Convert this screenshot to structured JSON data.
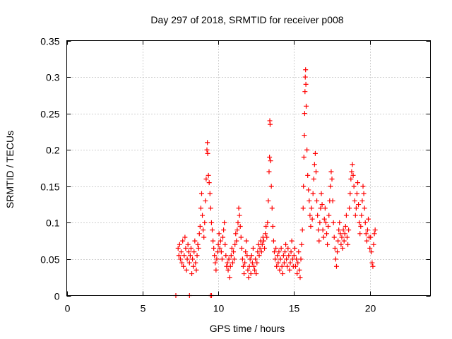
{
  "chart_data": {
    "type": "scatter",
    "title": "Day 297 of 2018, SRMTID for receiver p008",
    "xlabel": "GPS time / hours",
    "ylabel": "SRMTID / TECUs",
    "xlim": [
      0,
      24
    ],
    "ylim": [
      0,
      0.35
    ],
    "x_ticks": [
      0,
      5,
      10,
      15,
      20
    ],
    "y_ticks": [
      0,
      0.05,
      0.1,
      0.15,
      0.2,
      0.25,
      0.3,
      0.35
    ],
    "x_tick_labels": [
      "0",
      "5",
      "10",
      "15",
      "20"
    ],
    "y_tick_labels": [
      "0",
      "0.05",
      "0.1",
      "0.15",
      "0.2",
      "0.25",
      "0.3",
      "0.35"
    ],
    "grid": true,
    "marker": "+",
    "color": "#ff0000",
    "series": [
      {
        "name": "SRMTID",
        "points": [
          [
            7.2,
            0.0
          ],
          [
            8.1,
            0.0
          ],
          [
            9.5,
            0.0
          ],
          [
            9.55,
            0.0
          ],
          [
            7.35,
            0.065
          ],
          [
            7.4,
            0.055
          ],
          [
            7.45,
            0.07
          ],
          [
            7.5,
            0.05
          ],
          [
            7.55,
            0.06
          ],
          [
            7.6,
            0.045
          ],
          [
            7.65,
            0.075
          ],
          [
            7.7,
            0.04
          ],
          [
            7.75,
            0.055
          ],
          [
            7.8,
            0.08
          ],
          [
            7.85,
            0.065
          ],
          [
            7.9,
            0.035
          ],
          [
            7.95,
            0.05
          ],
          [
            8.0,
            0.07
          ],
          [
            8.05,
            0.06
          ],
          [
            8.1,
            0.045
          ],
          [
            8.15,
            0.055
          ],
          [
            8.2,
            0.065
          ],
          [
            8.25,
            0.03
          ],
          [
            8.3,
            0.05
          ],
          [
            8.35,
            0.04
          ],
          [
            8.4,
            0.06
          ],
          [
            8.45,
            0.075
          ],
          [
            8.5,
            0.045
          ],
          [
            8.55,
            0.035
          ],
          [
            8.6,
            0.055
          ],
          [
            8.65,
            0.07
          ],
          [
            8.7,
            0.065
          ],
          [
            8.75,
            0.085
          ],
          [
            8.8,
            0.095
          ],
          [
            8.85,
            0.12
          ],
          [
            8.9,
            0.14
          ],
          [
            8.95,
            0.11
          ],
          [
            9.0,
            0.09
          ],
          [
            9.05,
            0.08
          ],
          [
            9.1,
            0.1
          ],
          [
            9.15,
            0.13
          ],
          [
            9.2,
            0.16
          ],
          [
            9.25,
            0.2
          ],
          [
            9.28,
            0.21
          ],
          [
            9.3,
            0.195
          ],
          [
            9.35,
            0.165
          ],
          [
            9.4,
            0.155
          ],
          [
            9.45,
            0.14
          ],
          [
            9.5,
            0.12
          ],
          [
            9.55,
            0.1
          ],
          [
            9.6,
            0.09
          ],
          [
            9.65,
            0.075
          ],
          [
            9.7,
            0.065
          ],
          [
            9.75,
            0.055
          ],
          [
            9.8,
            0.045
          ],
          [
            9.85,
            0.035
          ],
          [
            9.9,
            0.05
          ],
          [
            9.95,
            0.06
          ],
          [
            10.0,
            0.07
          ],
          [
            10.05,
            0.085
          ],
          [
            10.1,
            0.065
          ],
          [
            10.15,
            0.075
          ],
          [
            10.2,
            0.06
          ],
          [
            10.25,
            0.05
          ],
          [
            10.3,
            0.08
          ],
          [
            10.35,
            0.09
          ],
          [
            10.4,
            0.1
          ],
          [
            10.45,
            0.07
          ],
          [
            10.5,
            0.055
          ],
          [
            10.55,
            0.04
          ],
          [
            10.6,
            0.045
          ],
          [
            10.65,
            0.035
          ],
          [
            10.7,
            0.05
          ],
          [
            10.75,
            0.025
          ],
          [
            10.8,
            0.04
          ],
          [
            10.85,
            0.055
          ],
          [
            10.9,
            0.065
          ],
          [
            10.95,
            0.045
          ],
          [
            11.0,
            0.06
          ],
          [
            11.05,
            0.05
          ],
          [
            11.1,
            0.07
          ],
          [
            11.15,
            0.085
          ],
          [
            11.2,
            0.075
          ],
          [
            11.25,
            0.09
          ],
          [
            11.3,
            0.1
          ],
          [
            11.35,
            0.12
          ],
          [
            11.4,
            0.11
          ],
          [
            11.45,
            0.095
          ],
          [
            11.5,
            0.08
          ],
          [
            11.55,
            0.065
          ],
          [
            11.6,
            0.05
          ],
          [
            11.65,
            0.04
          ],
          [
            11.7,
            0.03
          ],
          [
            11.75,
            0.045
          ],
          [
            11.8,
            0.06
          ],
          [
            11.85,
            0.075
          ],
          [
            11.9,
            0.055
          ],
          [
            11.95,
            0.035
          ],
          [
            12.0,
            0.025
          ],
          [
            12.05,
            0.04
          ],
          [
            12.1,
            0.05
          ],
          [
            12.15,
            0.03
          ],
          [
            12.2,
            0.055
          ],
          [
            12.25,
            0.045
          ],
          [
            12.3,
            0.065
          ],
          [
            12.35,
            0.04
          ],
          [
            12.4,
            0.035
          ],
          [
            12.45,
            0.05
          ],
          [
            12.5,
            0.03
          ],
          [
            12.55,
            0.045
          ],
          [
            12.6,
            0.06
          ],
          [
            12.65,
            0.07
          ],
          [
            12.7,
            0.055
          ],
          [
            12.75,
            0.065
          ],
          [
            12.8,
            0.075
          ],
          [
            12.85,
            0.06
          ],
          [
            12.9,
            0.07
          ],
          [
            12.95,
            0.08
          ],
          [
            13.0,
            0.075
          ],
          [
            13.05,
            0.065
          ],
          [
            13.1,
            0.085
          ],
          [
            13.15,
            0.095
          ],
          [
            13.2,
            0.08
          ],
          [
            13.25,
            0.1
          ],
          [
            13.3,
            0.13
          ],
          [
            13.35,
            0.17
          ],
          [
            13.38,
            0.19
          ],
          [
            13.4,
            0.24
          ],
          [
            13.42,
            0.235
          ],
          [
            13.45,
            0.185
          ],
          [
            13.5,
            0.15
          ],
          [
            13.55,
            0.12
          ],
          [
            13.6,
            0.095
          ],
          [
            13.65,
            0.075
          ],
          [
            13.7,
            0.06
          ],
          [
            13.75,
            0.05
          ],
          [
            13.8,
            0.065
          ],
          [
            13.85,
            0.04
          ],
          [
            13.9,
            0.055
          ],
          [
            13.95,
            0.045
          ],
          [
            14.0,
            0.06
          ],
          [
            14.05,
            0.035
          ],
          [
            14.1,
            0.05
          ],
          [
            14.15,
            0.065
          ],
          [
            14.2,
            0.04
          ],
          [
            14.25,
            0.03
          ],
          [
            14.3,
            0.055
          ],
          [
            14.35,
            0.045
          ],
          [
            14.4,
            0.06
          ],
          [
            14.45,
            0.07
          ],
          [
            14.5,
            0.05
          ],
          [
            14.55,
            0.04
          ],
          [
            14.6,
            0.065
          ],
          [
            14.65,
            0.055
          ],
          [
            14.7,
            0.035
          ],
          [
            14.75,
            0.045
          ],
          [
            14.8,
            0.06
          ],
          [
            14.85,
            0.075
          ],
          [
            14.9,
            0.05
          ],
          [
            14.95,
            0.04
          ],
          [
            15.0,
            0.055
          ],
          [
            15.05,
            0.065
          ],
          [
            15.1,
            0.04
          ],
          [
            15.15,
            0.05
          ],
          [
            15.2,
            0.03
          ],
          [
            15.25,
            0.045
          ],
          [
            15.3,
            0.06
          ],
          [
            15.35,
            0.035
          ],
          [
            15.4,
            0.025
          ],
          [
            15.45,
            0.05
          ],
          [
            15.5,
            0.07
          ],
          [
            15.55,
            0.09
          ],
          [
            15.6,
            0.12
          ],
          [
            15.62,
            0.15
          ],
          [
            15.65,
            0.19
          ],
          [
            15.68,
            0.22
          ],
          [
            15.7,
            0.25
          ],
          [
            15.72,
            0.28
          ],
          [
            15.74,
            0.3
          ],
          [
            15.76,
            0.31
          ],
          [
            15.78,
            0.29
          ],
          [
            15.8,
            0.26
          ],
          [
            15.85,
            0.2
          ],
          [
            15.9,
            0.165
          ],
          [
            15.95,
            0.145
          ],
          [
            16.0,
            0.13
          ],
          [
            16.05,
            0.11
          ],
          [
            16.1,
            0.095
          ],
          [
            16.15,
            0.12
          ],
          [
            16.2,
            0.105
          ],
          [
            16.25,
            0.14
          ],
          [
            16.3,
            0.16
          ],
          [
            16.35,
            0.18
          ],
          [
            16.4,
            0.195
          ],
          [
            16.45,
            0.17
          ],
          [
            16.5,
            0.13
          ],
          [
            16.55,
            0.11
          ],
          [
            16.6,
            0.09
          ],
          [
            16.65,
            0.075
          ],
          [
            16.7,
            0.1
          ],
          [
            16.75,
            0.12
          ],
          [
            16.8,
            0.14
          ],
          [
            16.85,
            0.125
          ],
          [
            16.9,
            0.09
          ],
          [
            16.95,
            0.08
          ],
          [
            17.0,
            0.105
          ],
          [
            17.05,
            0.12
          ],
          [
            17.1,
            0.1
          ],
          [
            17.15,
            0.085
          ],
          [
            17.2,
            0.07
          ],
          [
            17.25,
            0.095
          ],
          [
            17.3,
            0.11
          ],
          [
            17.35,
            0.13
          ],
          [
            17.4,
            0.15
          ],
          [
            17.45,
            0.17
          ],
          [
            17.5,
            0.16
          ],
          [
            17.55,
            0.13
          ],
          [
            17.6,
            0.1
          ],
          [
            17.65,
            0.08
          ],
          [
            17.7,
            0.065
          ],
          [
            17.75,
            0.05
          ],
          [
            17.8,
            0.04
          ],
          [
            17.85,
            0.06
          ],
          [
            17.9,
            0.075
          ],
          [
            17.95,
            0.09
          ],
          [
            18.0,
            0.1
          ],
          [
            18.05,
            0.085
          ],
          [
            18.1,
            0.07
          ],
          [
            18.15,
            0.08
          ],
          [
            18.2,
            0.065
          ],
          [
            18.25,
            0.09
          ],
          [
            18.3,
            0.075
          ],
          [
            18.35,
            0.085
          ],
          [
            18.4,
            0.095
          ],
          [
            18.45,
            0.11
          ],
          [
            18.5,
            0.08
          ],
          [
            18.55,
            0.07
          ],
          [
            18.6,
            0.09
          ],
          [
            18.65,
            0.12
          ],
          [
            18.7,
            0.14
          ],
          [
            18.75,
            0.16
          ],
          [
            18.8,
            0.17
          ],
          [
            18.85,
            0.18
          ],
          [
            18.9,
            0.165
          ],
          [
            18.95,
            0.15
          ],
          [
            19.0,
            0.13
          ],
          [
            19.05,
            0.11
          ],
          [
            19.1,
            0.12
          ],
          [
            19.15,
            0.14
          ],
          [
            19.2,
            0.155
          ],
          [
            19.25,
            0.125
          ],
          [
            19.3,
            0.1
          ],
          [
            19.35,
            0.085
          ],
          [
            19.4,
            0.095
          ],
          [
            19.45,
            0.11
          ],
          [
            19.5,
            0.13
          ],
          [
            19.55,
            0.15
          ],
          [
            19.6,
            0.14
          ],
          [
            19.65,
            0.12
          ],
          [
            19.7,
            0.1
          ],
          [
            19.75,
            0.085
          ],
          [
            19.8,
            0.075
          ],
          [
            19.85,
            0.09
          ],
          [
            19.9,
            0.105
          ],
          [
            19.95,
            0.08
          ],
          [
            20.0,
            0.065
          ],
          [
            20.05,
            0.08
          ],
          [
            20.1,
            0.06
          ],
          [
            20.15,
            0.045
          ],
          [
            20.2,
            0.04
          ],
          [
            20.25,
            0.07
          ],
          [
            20.3,
            0.085
          ],
          [
            20.35,
            0.09
          ]
        ]
      }
    ]
  }
}
